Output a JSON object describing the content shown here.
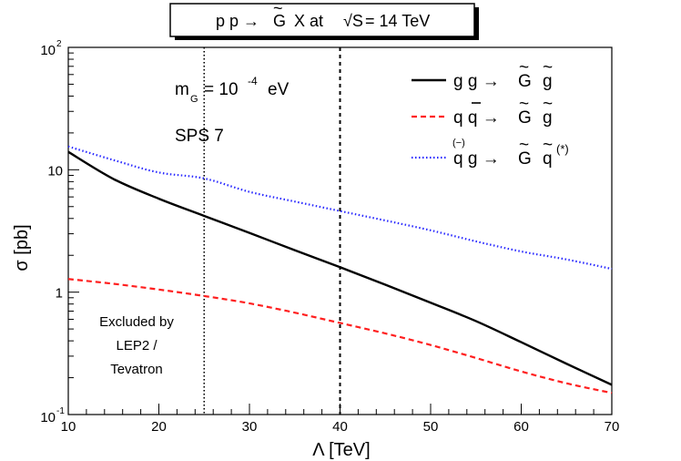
{
  "chart_data": {
    "type": "line",
    "title": "p p → G̃ X at √S = 14 TeV",
    "title_parts": {
      "process": "p p →",
      "gravitino": "G",
      "tilde": "~",
      "rest": "X at",
      "sqrt": "√S",
      "energy": "= 14 TeV"
    },
    "xlabel": "Λ [TeV]",
    "ylabel": "σ [pb]",
    "xlim": [
      10,
      70
    ],
    "ylim": [
      0.1,
      100
    ],
    "yscale": "log",
    "x_ticks": [
      10,
      20,
      30,
      40,
      50,
      60,
      70
    ],
    "x_tick_labels": [
      "10",
      "20",
      "30",
      "40",
      "50",
      "60",
      "70"
    ],
    "y_ticks": [
      {
        "value": 0.1,
        "base": "10",
        "exp": "-1"
      },
      {
        "value": 1,
        "base": "1",
        "exp": ""
      },
      {
        "value": 10,
        "base": "10",
        "exp": ""
      },
      {
        "value": 100,
        "base": "10",
        "exp": "2"
      }
    ],
    "x": [
      10,
      15,
      20,
      25,
      30,
      35,
      40,
      45,
      50,
      55,
      60,
      65,
      70
    ],
    "series": [
      {
        "name": "g g → G̃ g̃",
        "legend": {
          "lhs": "g g →",
          "p1": "G",
          "p2": "g"
        },
        "color": "#000000",
        "dash": "",
        "width": 2.4,
        "values": [
          14,
          8.4,
          5.8,
          4.2,
          3.05,
          2.2,
          1.6,
          1.15,
          0.82,
          0.58,
          0.39,
          0.26,
          0.175
        ]
      },
      {
        "name": "q q̄ → G̃ g̃",
        "legend": {
          "lhs": "q q →",
          "p1": "G",
          "p2": "g"
        },
        "color": "#ff1f1f",
        "dash": "6,4",
        "width": 2.2,
        "values": [
          1.28,
          1.17,
          1.05,
          0.93,
          0.81,
          0.68,
          0.56,
          0.46,
          0.37,
          0.29,
          0.225,
          0.18,
          0.15
        ]
      },
      {
        "name": "q(q̄) g → G̃ q̃(*)",
        "legend": {
          "lhs": "q g →",
          "p1": "G",
          "p2": "q",
          "sup": "(*)",
          "paren": "(−)"
        },
        "color": "#2a2aff",
        "dash": "1.5,2.5",
        "width": 2.2,
        "values": [
          15.5,
          12.0,
          9.5,
          8.5,
          6.6,
          5.5,
          4.6,
          3.85,
          3.2,
          2.6,
          2.15,
          1.85,
          1.55
        ]
      }
    ],
    "vertical_lines": [
      {
        "x": 25,
        "style": "dotted"
      },
      {
        "x": 40,
        "style": "dashed"
      }
    ],
    "annotations": {
      "mass_m": "m",
      "mass_sub": "G",
      "mass_value": "= 10",
      "mass_exp": "-4",
      "mass_unit": "eV",
      "benchmark": "SPS 7",
      "excluded_lines": [
        "Excluded by",
        "LEP2 /",
        "Tevatron"
      ]
    },
    "legend_position": "top-right"
  }
}
